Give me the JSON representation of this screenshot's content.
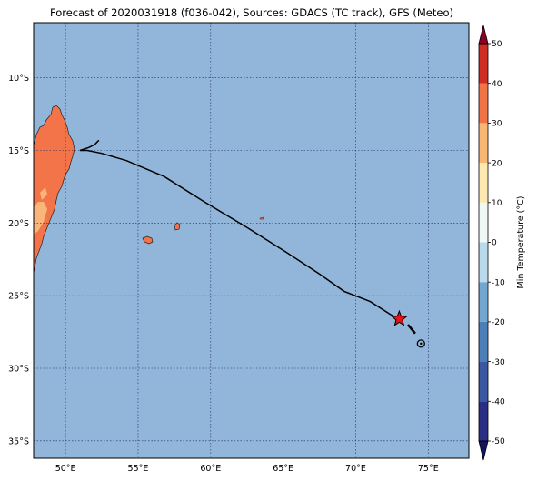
{
  "title": "Forecast of 2020031918 (f036-042), Sources: GDACS (TC track), GFS (Meteo)",
  "map": {
    "lon_range": [
      47.8,
      77.8
    ],
    "lat_range": [
      -36.2,
      -6.2
    ],
    "ocean_color": "#92b5da",
    "grid": true,
    "lon_ticks": [
      {
        "v": 50,
        "label": "50°E"
      },
      {
        "v": 55,
        "label": "55°E"
      },
      {
        "v": 60,
        "label": "60°E"
      },
      {
        "v": 65,
        "label": "65°E"
      },
      {
        "v": 70,
        "label": "70°E"
      },
      {
        "v": 75,
        "label": "75°E"
      }
    ],
    "lat_ticks": [
      {
        "v": -10,
        "label": "10°S"
      },
      {
        "v": -15,
        "label": "15°S"
      },
      {
        "v": -20,
        "label": "20°S"
      },
      {
        "v": -25,
        "label": "25°S"
      },
      {
        "v": -30,
        "label": "30°S"
      },
      {
        "v": -35,
        "label": "35°S"
      }
    ]
  },
  "track": {
    "past": [
      [
        52.3,
        -14.3
      ],
      [
        52.0,
        -14.6
      ],
      [
        51.6,
        -14.8
      ],
      [
        51.0,
        -15.0
      ],
      [
        51.5,
        -15.0
      ],
      [
        52.5,
        -15.2
      ],
      [
        54.2,
        -15.7
      ],
      [
        56.8,
        -16.8
      ],
      [
        59.5,
        -18.5
      ],
      [
        62.5,
        -20.3
      ],
      [
        65.2,
        -22.0
      ],
      [
        67.5,
        -23.5
      ],
      [
        69.2,
        -24.7
      ],
      [
        71.0,
        -25.4
      ],
      [
        72.4,
        -26.3
      ],
      [
        73.0,
        -26.6
      ]
    ],
    "current": [
      73.0,
      -26.6
    ],
    "forecast_dash": [
      [
        73.6,
        -27.0
      ],
      [
        74.1,
        -27.6
      ]
    ],
    "forecast_marker": [
      74.5,
      -28.3
    ],
    "star_color": "#e8131a"
  },
  "colorbar": {
    "label": "Min Temperature (°C)",
    "min": -50,
    "max": 50,
    "ticks": [
      50,
      40,
      30,
      20,
      10,
      0,
      -10,
      -20,
      -30,
      -40,
      -50
    ],
    "bands": [
      {
        "from": -50,
        "to": -40,
        "color": "#2a2e84"
      },
      {
        "from": -40,
        "to": -30,
        "color": "#3a58a2"
      },
      {
        "from": -30,
        "to": -20,
        "color": "#4c7fb8"
      },
      {
        "from": -20,
        "to": -10,
        "color": "#74a7cf"
      },
      {
        "from": -10,
        "to": 0,
        "color": "#b8daea"
      },
      {
        "from": 0,
        "to": 10,
        "color": "#eff8f4"
      },
      {
        "from": 10,
        "to": 20,
        "color": "#fde9b0"
      },
      {
        "from": 20,
        "to": 30,
        "color": "#f9b774"
      },
      {
        "from": 30,
        "to": 40,
        "color": "#f07446"
      },
      {
        "from": 40,
        "to": 50,
        "color": "#cf2c24"
      }
    ],
    "extend_low_color": "#15155e",
    "extend_high_color": "#8b0025"
  },
  "legend_colors": {
    "land_warm": "#f4744a",
    "land_mild": "#fab57a"
  }
}
